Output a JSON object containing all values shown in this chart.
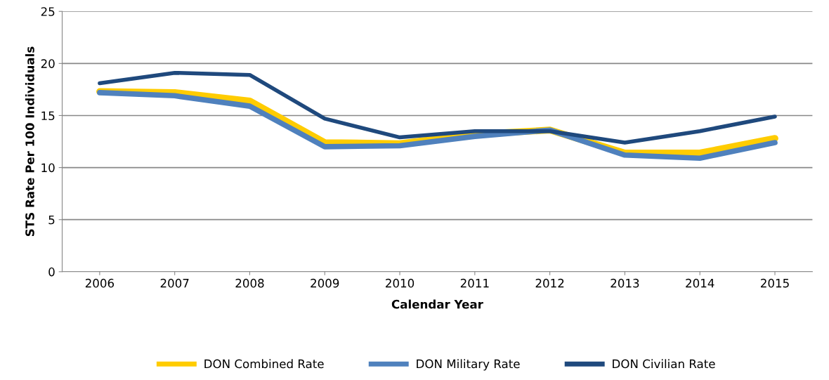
{
  "chart_data": {
    "type": "line",
    "xlabel": "Calendar Year",
    "ylabel": "STS Rate Per 100 Individuals",
    "categories": [
      "2006",
      "2007",
      "2008",
      "2009",
      "2010",
      "2011",
      "2012",
      "2013",
      "2014",
      "2015"
    ],
    "series": [
      {
        "name": "DON Combined Rate",
        "color": "#ffcc00",
        "values": [
          17.3,
          17.2,
          16.4,
          12.4,
          12.3,
          13.2,
          13.6,
          11.4,
          11.4,
          12.8
        ]
      },
      {
        "name": "DON Military Rate",
        "color": "#4f81bd",
        "values": [
          17.2,
          16.9,
          15.9,
          12.0,
          12.1,
          13.0,
          13.6,
          11.2,
          10.9,
          12.4
        ]
      },
      {
        "name": "DON Civilian Rate",
        "color": "#1f497d",
        "values": [
          18.1,
          19.1,
          18.9,
          14.7,
          12.9,
          13.5,
          13.5,
          12.4,
          13.5,
          14.9
        ]
      }
    ],
    "ylim": [
      0,
      25
    ],
    "yticks": [
      0,
      5,
      10,
      15,
      20,
      25
    ],
    "grid": "y",
    "legend": "bottom",
    "marker": "none",
    "line_style": "solid"
  }
}
